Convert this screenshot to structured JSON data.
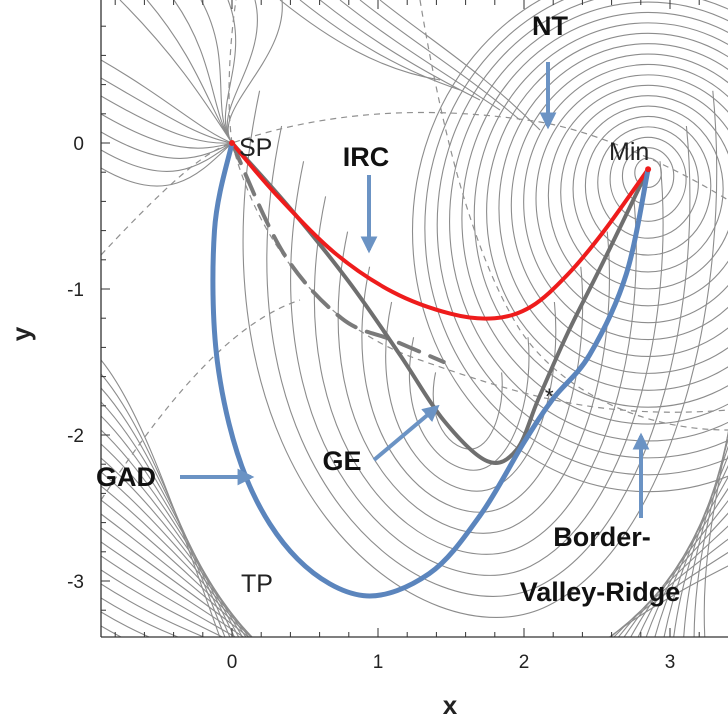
{
  "chart_data": {
    "type": "line",
    "title": "",
    "xlabel": "x",
    "ylabel": "y",
    "xlim": [
      -0.9,
      3.2
    ],
    "ylim": [
      -3.4,
      0.95
    ],
    "x_ticks": [
      "0",
      "1",
      "2",
      "3"
    ],
    "y_ticks": [
      "0",
      "-1",
      "-2",
      "-3"
    ],
    "x_tick_values": [
      0,
      1,
      2,
      3
    ],
    "y_tick_values": [
      0,
      -1,
      -2,
      -3
    ],
    "grid": false,
    "points": [
      {
        "label": "SP",
        "x": 0.0,
        "y": 0.0
      },
      {
        "label": "Min",
        "x": 2.85,
        "y": -0.18
      },
      {
        "label": "TP",
        "x": 0.0,
        "y": -3.1
      },
      {
        "label": "*",
        "x": 2.22,
        "y": -1.75
      }
    ],
    "series": [
      {
        "name": "IRC",
        "color": "#ee1c1c",
        "style": "solid",
        "x": [
          0.0,
          0.3,
          0.7,
          1.1,
          1.5,
          1.8,
          2.05,
          2.3,
          2.55,
          2.85
        ],
        "y": [
          0.0,
          -0.35,
          -0.75,
          -1.02,
          -1.17,
          -1.2,
          -1.12,
          -0.9,
          -0.6,
          -0.18
        ]
      },
      {
        "name": "GE",
        "color": "#6f6f6f",
        "style": "solid",
        "x": [
          0.0,
          0.4,
          0.8,
          1.15,
          1.45,
          1.75,
          1.95,
          2.1,
          2.3,
          2.55,
          2.85
        ],
        "y": [
          0.0,
          -0.45,
          -0.95,
          -1.45,
          -1.9,
          -2.18,
          -2.1,
          -1.75,
          -1.3,
          -0.8,
          -0.18
        ]
      },
      {
        "name": "GAD",
        "color": "#5b85bd",
        "style": "solid",
        "x": [
          0.0,
          -0.12,
          -0.1,
          0.1,
          0.45,
          0.9,
          1.35,
          1.7,
          2.0,
          2.2,
          2.45,
          2.7,
          2.85
        ],
        "y": [
          0.0,
          -0.6,
          -1.5,
          -2.3,
          -2.85,
          -3.1,
          -2.95,
          -2.55,
          -2.05,
          -1.75,
          -1.45,
          -0.9,
          -0.18
        ]
      },
      {
        "name": "NT",
        "color": "#7a7a7a",
        "style": "dashed",
        "x": [
          0.0,
          0.35,
          0.75,
          1.1,
          1.45
        ],
        "y": [
          0.0,
          -0.75,
          -1.2,
          -1.35,
          -1.5
        ]
      }
    ],
    "annotations": [
      {
        "text": "NT"
      },
      {
        "text": "IRC"
      },
      {
        "text": "GE"
      },
      {
        "text": "GAD"
      },
      {
        "text": "Border-"
      },
      {
        "text": "Valley-Ridge"
      }
    ]
  }
}
